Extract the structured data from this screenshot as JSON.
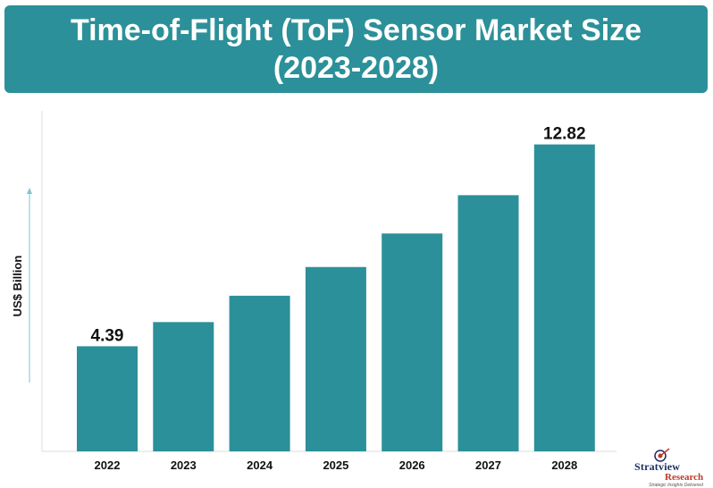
{
  "title": "Time-of-Flight (ToF) Sensor Market Size (2023-2028)",
  "colors": {
    "banner": "#2b9099",
    "bar": "#2b9099",
    "axis_arrow": "#7fc7cc"
  },
  "logo": {
    "name": "Stratview",
    "sub": "Research",
    "tagline": "Strategic Insights Delivered"
  },
  "chart_data": {
    "type": "bar",
    "categories": [
      "2022",
      "2023",
      "2024",
      "2025",
      "2026",
      "2027",
      "2028"
    ],
    "values": [
      4.39,
      5.4,
      6.5,
      7.7,
      9.1,
      10.7,
      12.82
    ],
    "data_labels": [
      "4.39",
      "",
      "",
      "",
      "",
      "",
      "12.82"
    ],
    "ylabel": "US$ Billion",
    "ylim": [
      0,
      14
    ],
    "grid": false
  }
}
